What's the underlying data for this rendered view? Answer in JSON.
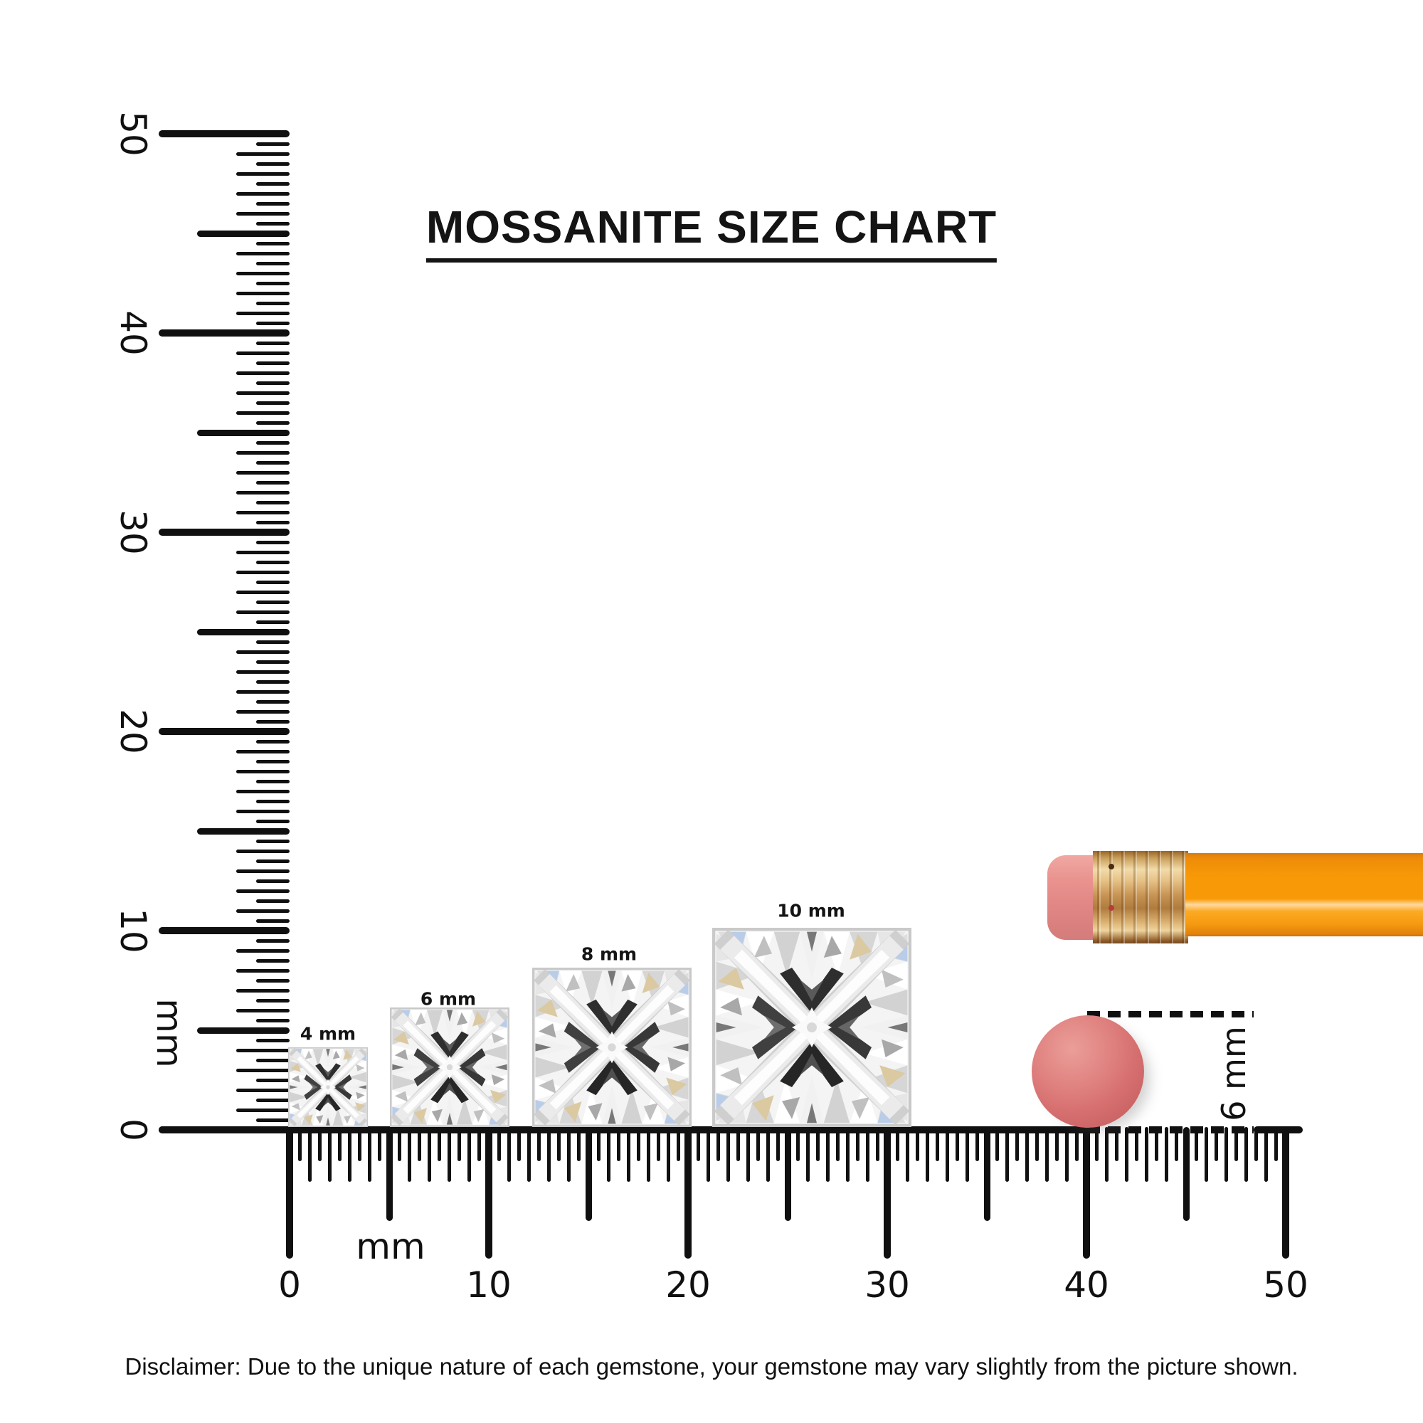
{
  "title": "MOSSANITE SIZE CHART",
  "vertical_ruler": {
    "unit": "mm",
    "min": 0,
    "max": 50,
    "major_step": 10,
    "labels": [
      "0",
      "10",
      "20",
      "30",
      "40",
      "50"
    ]
  },
  "horizontal_ruler": {
    "unit": "mm",
    "min": 0,
    "max": 50,
    "major_step": 10,
    "labels": [
      "0",
      "10",
      "20",
      "30",
      "40",
      "50"
    ]
  },
  "gems": [
    {
      "label": "4 mm",
      "size_mm": 4
    },
    {
      "label": "6 mm",
      "size_mm": 6
    },
    {
      "label": "8 mm",
      "size_mm": 8
    },
    {
      "label": "10 mm",
      "size_mm": 10
    }
  ],
  "eraser_measure": {
    "label": "6 mm",
    "diameter_mm": 6
  },
  "disclaimer": "Disclaimer: Due to the unique nature of each gemstone, your gemstone may vary slightly from the picture shown.",
  "colors": {
    "ink": "#101010",
    "pencil-body": "#f89a07",
    "pencil-ferrule": "#d8ae6e",
    "pencil-eraser": "#e9928e",
    "eraser-top": "#d66f6f"
  }
}
